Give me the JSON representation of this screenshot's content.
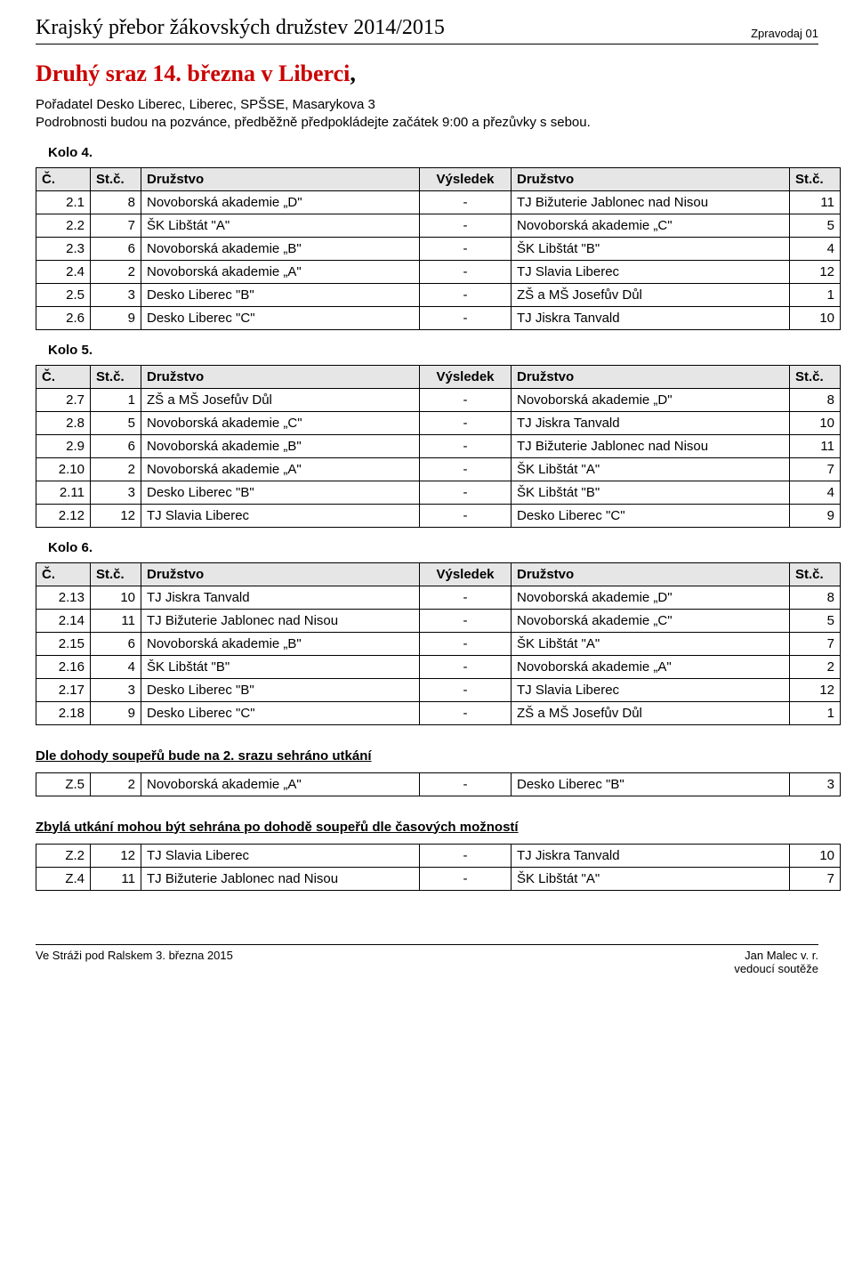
{
  "header": {
    "left": "Krajský přebor žákovských družstev 2014/2015",
    "right": "Zpravodaj 01"
  },
  "headline": {
    "prefix": "Druhý sraz 14. března v Liberci",
    "suffix": ","
  },
  "intro_line1": "Pořadatel Desko Liberec, Liberec, SPŠSE, Masarykova 3",
  "intro_line2": "Podrobnosti budou na pozvánce, předběžně předpokládejte začátek 9:00 a přezůvky s sebou.",
  "table_headers": {
    "c": "Č.",
    "stc": "St.č.",
    "d": "Družstvo",
    "v": "Výsledek"
  },
  "kolo4": {
    "label": "Kolo 4.",
    "rows": [
      {
        "c": "2.1",
        "s1": "8",
        "d1": "Novoborská akademie „D\"",
        "v": "-",
        "d2": "TJ Bižuterie Jablonec nad Nisou",
        "s2": "11"
      },
      {
        "c": "2.2",
        "s1": "7",
        "d1": "ŠK Libštát \"A\"",
        "v": "-",
        "d2": "Novoborská akademie „C\"",
        "s2": "5"
      },
      {
        "c": "2.3",
        "s1": "6",
        "d1": "Novoborská akademie „B\"",
        "v": "-",
        "d2": "ŠK Libštát \"B\"",
        "s2": "4"
      },
      {
        "c": "2.4",
        "s1": "2",
        "d1": "Novoborská akademie „A\"",
        "v": "-",
        "d2": "TJ Slavia Liberec",
        "s2": "12"
      },
      {
        "c": "2.5",
        "s1": "3",
        "d1": "Desko Liberec \"B\"",
        "v": "-",
        "d2": "ZŠ a MŠ Josefův Důl",
        "s2": "1"
      },
      {
        "c": "2.6",
        "s1": "9",
        "d1": "Desko Liberec \"C\"",
        "v": "-",
        "d2": "TJ Jiskra Tanvald",
        "s2": "10"
      }
    ]
  },
  "kolo5": {
    "label": "Kolo 5.",
    "rows": [
      {
        "c": "2.7",
        "s1": "1",
        "d1": "ZŠ a MŠ Josefův Důl",
        "v": "-",
        "d2": "Novoborská akademie „D\"",
        "s2": "8"
      },
      {
        "c": "2.8",
        "s1": "5",
        "d1": "Novoborská akademie „C\"",
        "v": "-",
        "d2": "TJ Jiskra Tanvald",
        "s2": "10"
      },
      {
        "c": "2.9",
        "s1": "6",
        "d1": "Novoborská akademie „B\"",
        "v": "-",
        "d2": "TJ Bižuterie Jablonec nad Nisou",
        "s2": "11"
      },
      {
        "c": "2.10",
        "s1": "2",
        "d1": "Novoborská akademie „A\"",
        "v": "-",
        "d2": "ŠK Libštát \"A\"",
        "s2": "7"
      },
      {
        "c": "2.11",
        "s1": "3",
        "d1": "Desko Liberec \"B\"",
        "v": "-",
        "d2": "ŠK Libštát \"B\"",
        "s2": "4"
      },
      {
        "c": "2.12",
        "s1": "12",
        "d1": "TJ Slavia Liberec",
        "v": "-",
        "d2": "Desko Liberec \"C\"",
        "s2": "9"
      }
    ]
  },
  "kolo6": {
    "label": "Kolo 6.",
    "rows": [
      {
        "c": "2.13",
        "s1": "10",
        "d1": "TJ Jiskra Tanvald",
        "v": "-",
        "d2": "Novoborská akademie „D\"",
        "s2": "8"
      },
      {
        "c": "2.14",
        "s1": "11",
        "d1": "TJ Bižuterie Jablonec nad Nisou",
        "v": "-",
        "d2": "Novoborská akademie „C\"",
        "s2": "5"
      },
      {
        "c": "2.15",
        "s1": "6",
        "d1": "Novoborská akademie „B\"",
        "v": "-",
        "d2": "ŠK Libštát \"A\"",
        "s2": "7"
      },
      {
        "c": "2.16",
        "s1": "4",
        "d1": "ŠK Libštát \"B\"",
        "v": "-",
        "d2": "Novoborská akademie „A\"",
        "s2": "2"
      },
      {
        "c": "2.17",
        "s1": "3",
        "d1": "Desko Liberec \"B\"",
        "v": "-",
        "d2": "TJ Slavia Liberec",
        "s2": "12"
      },
      {
        "c": "2.18",
        "s1": "9",
        "d1": "Desko Liberec \"C\"",
        "v": "-",
        "d2": "ZŠ a MŠ Josefův Důl",
        "s2": "1"
      }
    ]
  },
  "agreed": {
    "label": "Dle dohody soupeřů bude na 2. srazu sehráno utkání",
    "rows": [
      {
        "c": "Z.5",
        "s1": "2",
        "d1": "Novoborská akademie „A\"",
        "v": "-",
        "d2": "Desko Liberec \"B\"",
        "s2": "3"
      }
    ]
  },
  "remaining": {
    "label": "Zbylá utkání mohou být sehrána po dohodě soupeřů dle časových možností",
    "rows": [
      {
        "c": "Z.2",
        "s1": "12",
        "d1": "TJ Slavia Liberec",
        "v": "-",
        "d2": "TJ Jiskra Tanvald",
        "s2": "10"
      },
      {
        "c": "Z.4",
        "s1": "11",
        "d1": "TJ Bižuterie Jablonec nad Nisou",
        "v": "-",
        "d2": "ŠK Libštát \"A\"",
        "s2": "7"
      }
    ]
  },
  "footer": {
    "left": "Ve Stráži pod Ralskem 3. března 2015",
    "right1": "Jan Malec v. r.",
    "right2": "vedoucí soutěže"
  }
}
